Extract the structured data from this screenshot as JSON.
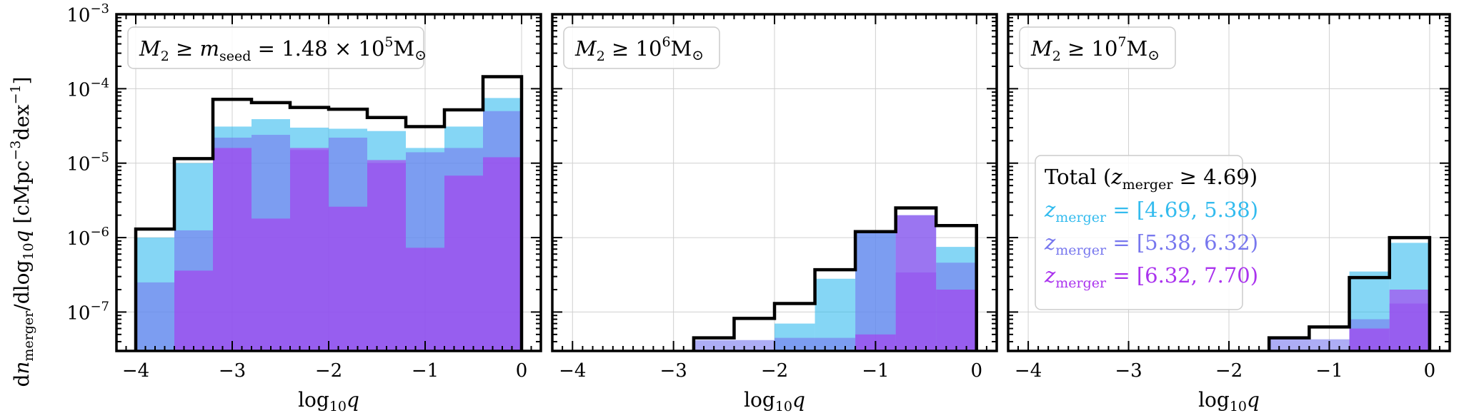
{
  "chart_data": {
    "type": "histogram",
    "y_scale": "log",
    "ylim": [
      3e-08,
      0.001
    ],
    "xlim": [
      -4.2,
      0.2
    ],
    "bin_edges": [
      -4.0,
      -3.6,
      -3.2,
      -2.8,
      -2.4,
      -2.0,
      -1.6,
      -1.2,
      -0.8,
      -0.4,
      0.0
    ],
    "x_ticks": [
      -4,
      -3,
      -2,
      -1,
      0
    ],
    "x_tick_labels": [
      "−4",
      "−3",
      "−2",
      "−1",
      "0"
    ],
    "y_ticks": [
      1e-07,
      1e-06,
      1e-05,
      0.0001,
      0.001
    ],
    "y_tick_labels": [
      {
        "base": "10",
        "exp": "−7"
      },
      {
        "base": "10",
        "exp": "−6"
      },
      {
        "base": "10",
        "exp": "−5"
      },
      {
        "base": "10",
        "exp": "−4"
      },
      {
        "base": "10",
        "exp": "−3"
      }
    ],
    "ylabel": "dn_merger/dlog10q [cMpc^-3 dex^-1]",
    "xlabel": "log10q",
    "series_colors": {
      "total": "#000000",
      "z1": "#33bbee",
      "z2": "#7777ee",
      "z3": "#aa33ee"
    },
    "legend": {
      "placement": "right-center of third panel",
      "entries": [
        {
          "key": "total",
          "label": "Total (z_merger ≥ 4.69)"
        },
        {
          "key": "z1",
          "label": "z_merger = [4.69, 5.38)"
        },
        {
          "key": "z2",
          "label": "z_merger = [5.38, 6.32)"
        },
        {
          "key": "z3",
          "label": "z_merger = [6.32, 7.70)"
        }
      ]
    },
    "panels": [
      {
        "annotation": "M2 ≥ m_seed = 1.48 × 10^5 M⊙",
        "total": [
          1.3e-06,
          1.15e-05,
          7.2e-05,
          6.5e-05,
          5.6e-05,
          5.3e-05,
          4.1e-05,
          3.1e-05,
          5.2e-05,
          0.000145
        ],
        "z1": [
          1e-06,
          1e-05,
          3.1e-05,
          3.9e-05,
          3e-05,
          2.9e-05,
          2.7e-05,
          1.6e-05,
          3.1e-05,
          7.5e-05
        ],
        "z2": [
          2.5e-07,
          1.25e-06,
          2.2e-05,
          2.4e-05,
          1.5e-05,
          2.2e-05,
          1e-05,
          1.4e-05,
          1.6e-05,
          5e-05
        ],
        "z3": [
          3e-08,
          3.6e-07,
          1.6e-05,
          1.8e-06,
          1.6e-05,
          2.6e-06,
          1.1e-05,
          7.3e-07,
          6.8e-06,
          1.2e-05
        ]
      },
      {
        "annotation": "M2 ≥ 10^6 M⊙",
        "total": [
          0,
          0,
          0,
          4.5e-08,
          8.2e-08,
          1.3e-07,
          3.7e-07,
          1.2e-06,
          2.5e-06,
          1.45e-06
        ],
        "z1": [
          0,
          0,
          0,
          0,
          0,
          7e-08,
          2.8e-07,
          1.2e-06,
          2e-06,
          7.5e-07
        ],
        "z2": [
          0,
          0,
          0,
          4.2e-08,
          4.2e-08,
          4.5e-08,
          4.5e-08,
          1.15e-06,
          3.4e-07,
          4.6e-07
        ],
        "z3": [
          0,
          0,
          0,
          0,
          0,
          0,
          0,
          5e-08,
          2e-06,
          2e-07
        ]
      },
      {
        "annotation": "M2 ≥ 10^7 M⊙",
        "total": [
          0,
          0,
          0,
          0,
          0,
          0,
          4.5e-08,
          6.3e-08,
          2.9e-07,
          1e-06
        ],
        "z1": [
          0,
          0,
          0,
          0,
          0,
          0,
          0,
          0,
          3.5e-07,
          8.5e-07
        ],
        "z2": [
          0,
          0,
          0,
          0,
          0,
          0,
          4.3e-08,
          4.3e-08,
          8e-08,
          1.3e-07
        ],
        "z3": [
          0,
          0,
          0,
          0,
          0,
          0,
          0,
          0,
          6e-08,
          2e-07
        ]
      }
    ]
  }
}
